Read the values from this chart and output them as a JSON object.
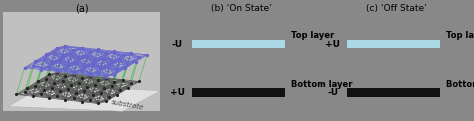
{
  "bg_color": "#888888",
  "panel_a_label": "(a)",
  "panel_b_label": "(b) ‘On State’",
  "panel_c_label": "(c) ‘Off State’",
  "top_layer_label": "Top layer",
  "bottom_layer_label": "Bottom layer",
  "top_bar_color": "#add8e6",
  "bottom_bar_color": "#111111",
  "label_neg_u": "-U",
  "label_pos_u": "+U",
  "substrate_label": "substrate",
  "node_color_bottom": "#222222",
  "node_color_top": "#6666cc",
  "edge_color_bottom": "#555555",
  "edge_color_top": "#6666cc",
  "inter_edge_color": "#44bb44",
  "graphene_bg": "#d8d8d8",
  "graphene_bg2": "#e8e8e8"
}
